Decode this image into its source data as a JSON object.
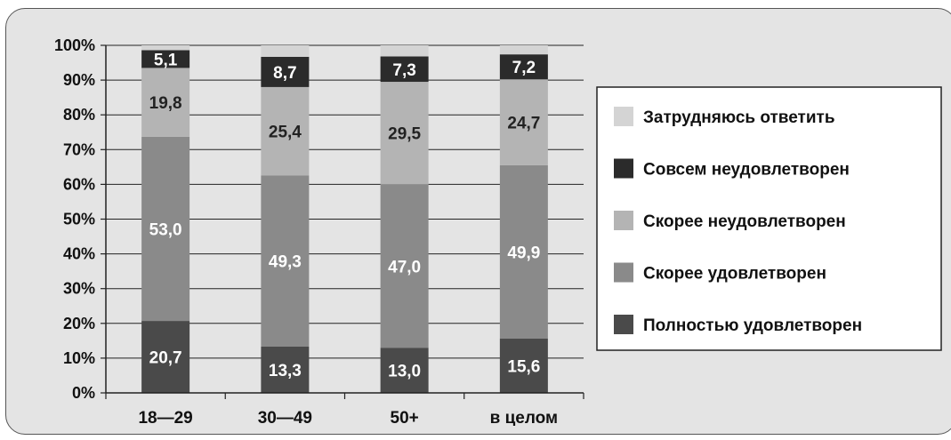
{
  "chart_data": {
    "type": "bar",
    "stacked": true,
    "categories": [
      "18—29",
      "30—49",
      "50+",
      "в целом"
    ],
    "yticks": [
      "0%",
      "10%",
      "20%",
      "30%",
      "40%",
      "50%",
      "60%",
      "70%",
      "80%",
      "90%",
      "100%"
    ],
    "ylim": [
      0,
      100
    ],
    "grid": true,
    "legend_position": "right",
    "series": [
      {
        "name": "Полностью удовлетворен",
        "color": "#4a4a4a",
        "label_color": "#ffffff",
        "values": [
          20.7,
          13.3,
          13.0,
          15.6
        ],
        "labels": [
          "20,7",
          "13,3",
          "13,0",
          "15,6"
        ]
      },
      {
        "name": "Скорее удовлетворен",
        "color": "#8a8a8a",
        "label_color": "#ffffff",
        "values": [
          53.0,
          49.3,
          47.0,
          49.9
        ],
        "labels": [
          "53,0",
          "49,3",
          "47,0",
          "49,9"
        ]
      },
      {
        "name": "Скорее неудовлетворен",
        "color": "#b4b4b4",
        "label_color": "#222222",
        "values": [
          19.8,
          25.4,
          29.5,
          24.7
        ],
        "labels": [
          "19,8",
          "25,4",
          "29,5",
          "24,7"
        ]
      },
      {
        "name": "Совсем неудовлетворен",
        "color": "#2b2b2b",
        "label_color": "#ffffff",
        "values": [
          5.1,
          8.7,
          7.3,
          7.2
        ],
        "labels": [
          "5,1",
          "8,7",
          "7,3",
          "7,2"
        ]
      },
      {
        "name": "Затрудняюсь ответить",
        "color": "#d4d4d4",
        "label_color": "#222222",
        "values": [
          1.4,
          3.3,
          3.2,
          2.6
        ],
        "labels": [
          "",
          "",
          "",
          ""
        ]
      }
    ],
    "legend_order": [
      4,
      3,
      2,
      1,
      0
    ]
  }
}
